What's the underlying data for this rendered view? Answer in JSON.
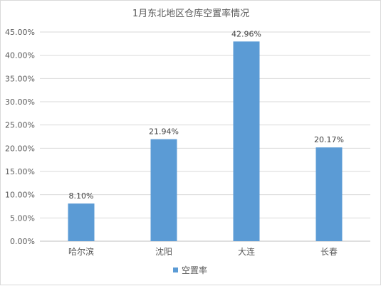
{
  "chart_data": {
    "type": "bar",
    "title": "1月东北地区仓库空置率情况",
    "categories": [
      "哈尔滨",
      "沈阳",
      "大连",
      "长春"
    ],
    "series": [
      {
        "name": "空置率",
        "values": [
          8.1,
          21.94,
          42.96,
          20.17
        ],
        "color": "#5b9bd5"
      }
    ],
    "data_labels": [
      "8.10%",
      "21.94%",
      "42.96%",
      "20.17%"
    ],
    "ylim": [
      0,
      45
    ],
    "y_ticks": [
      "0.00%",
      "5.00%",
      "10.00%",
      "15.00%",
      "20.00%",
      "25.00%",
      "30.00%",
      "35.00%",
      "40.00%",
      "45.00%"
    ],
    "grid": true,
    "legend_position": "bottom"
  }
}
